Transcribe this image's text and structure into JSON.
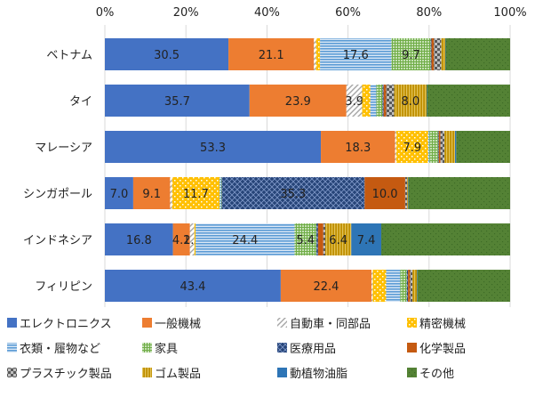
{
  "chart_data": {
    "type": "bar",
    "orientation": "horizontal",
    "stacked": "percent",
    "x_ticks": [
      "0%",
      "20%",
      "40%",
      "60%",
      "80%",
      "100%"
    ],
    "xlim": [
      0,
      100
    ],
    "legend_position": "bottom",
    "categories": [
      "ベトナム",
      "タイ",
      "マレーシア",
      "シンガポール",
      "インドネシア",
      "フィリピン"
    ],
    "series": [
      {
        "name": "エレクトロニクス",
        "color": "#4472c4",
        "pattern": "solid",
        "values": [
          30.5,
          35.7,
          53.3,
          7.0,
          16.8,
          43.4
        ],
        "labels": [
          "30.5",
          "35.7",
          "53.3",
          "7.0",
          "16.8",
          "43.4"
        ]
      },
      {
        "name": "一般機械",
        "color": "#ed7d31",
        "pattern": "solid",
        "values": [
          21.1,
          23.9,
          18.3,
          9.1,
          4.2,
          22.4
        ],
        "labels": [
          "21.1",
          "23.9",
          "18.3",
          "9.1",
          "4.2",
          "22.4"
        ]
      },
      {
        "name": "自動車・同部品",
        "color": "#a5a5a5",
        "pattern": "diagonal",
        "values": [
          0.5,
          3.9,
          0.3,
          0.5,
          1.1,
          0.3
        ],
        "labels": [
          "",
          "3.9",
          "",
          "",
          "1.1",
          ""
        ]
      },
      {
        "name": "精密機械",
        "color": "#ffc000",
        "pattern": "dots",
        "values": [
          1.0,
          2.0,
          7.9,
          11.7,
          0.3,
          3.3
        ],
        "labels": [
          "",
          "",
          "7.9",
          "11.7",
          "",
          ""
        ]
      },
      {
        "name": "衣類・履物など",
        "color": "#5b9bd5",
        "pattern": "hlines",
        "values": [
          17.6,
          1.5,
          0.3,
          0.3,
          24.4,
          3.5
        ],
        "labels": [
          "17.6",
          "",
          "",
          "",
          "24.4",
          ""
        ]
      },
      {
        "name": "家具",
        "color": "#70ad47",
        "pattern": "grid",
        "values": [
          9.7,
          1.5,
          2.1,
          0.2,
          5.4,
          1.6
        ],
        "labels": [
          "9.7",
          "",
          "",
          "",
          "5.4",
          ""
        ]
      },
      {
        "name": "医療用品",
        "color": "#264478",
        "pattern": "crosshatch",
        "values": [
          0.2,
          0.3,
          0.2,
          35.3,
          0.4,
          0.3
        ],
        "labels": [
          "",
          "",
          "",
          "35.3",
          "",
          ""
        ]
      },
      {
        "name": "化学製品",
        "color": "#c55a11",
        "pattern": "solid",
        "values": [
          0.6,
          0.6,
          0.4,
          10.0,
          1.3,
          0.5
        ],
        "labels": [
          "",
          "",
          "",
          "10.0",
          "",
          ""
        ]
      },
      {
        "name": "プラスチック製品",
        "color": "#595959",
        "pattern": "checker",
        "values": [
          1.8,
          2.0,
          1.0,
          0.5,
          0.5,
          0.6
        ],
        "labels": [
          "",
          "",
          "",
          "",
          "",
          ""
        ]
      },
      {
        "name": "ゴム製品",
        "color": "#bf8f00",
        "pattern": "vlines",
        "values": [
          1.0,
          8.0,
          2.6,
          0.2,
          6.4,
          1.1
        ],
        "labels": [
          "",
          "8.0",
          "",
          "",
          "6.4",
          ""
        ]
      },
      {
        "name": "動植物油脂",
        "color": "#2e75b6",
        "pattern": "solid",
        "values": [
          0.1,
          0.1,
          0.3,
          0.1,
          7.4,
          0.1
        ],
        "labels": [
          "",
          "",
          "",
          "",
          "7.4",
          ""
        ]
      },
      {
        "name": "その他",
        "color": "#548235",
        "pattern": "dots-dark",
        "values": [
          15.9,
          20.5,
          13.3,
          25.1,
          31.8,
          22.9
        ],
        "labels": [
          "",
          "",
          "",
          "",
          "",
          ""
        ]
      }
    ]
  }
}
